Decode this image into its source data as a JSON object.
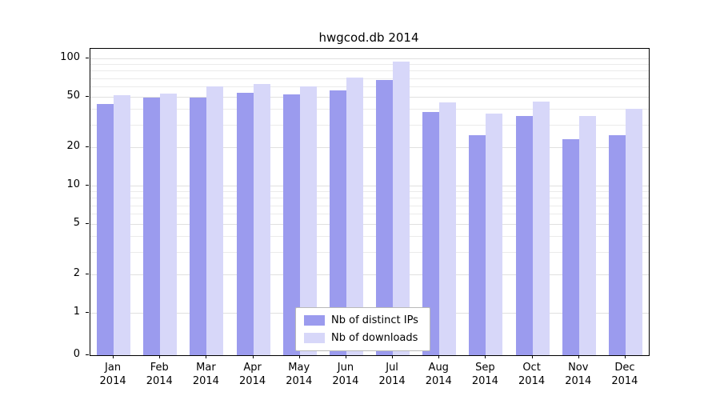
{
  "title": "hwgcod.db 2014",
  "chart_data": {
    "type": "bar",
    "title": "hwgcod.db 2014",
    "yscale": "symlog",
    "ylim": [
      0,
      110
    ],
    "y_ticks": [
      0,
      1,
      2,
      5,
      10,
      20,
      50,
      100
    ],
    "grid": true,
    "legend_position": "lower center",
    "categories": [
      "Jan",
      "Feb",
      "Mar",
      "Apr",
      "May",
      "Jun",
      "Jul",
      "Aug",
      "Sep",
      "Oct",
      "Nov",
      "Dec"
    ],
    "year_label": "2014",
    "series": [
      {
        "name": "Nb of distinct IPs",
        "color": "#9b9bee",
        "values": [
          44,
          49,
          49,
          54,
          52,
          56,
          68,
          38,
          25,
          35,
          23,
          25
        ]
      },
      {
        "name": "Nb of downloads",
        "color": "#d7d7f9",
        "values": [
          51,
          53,
          60,
          63,
          60,
          71,
          95,
          45,
          37,
          46,
          35,
          40
        ]
      }
    ]
  }
}
